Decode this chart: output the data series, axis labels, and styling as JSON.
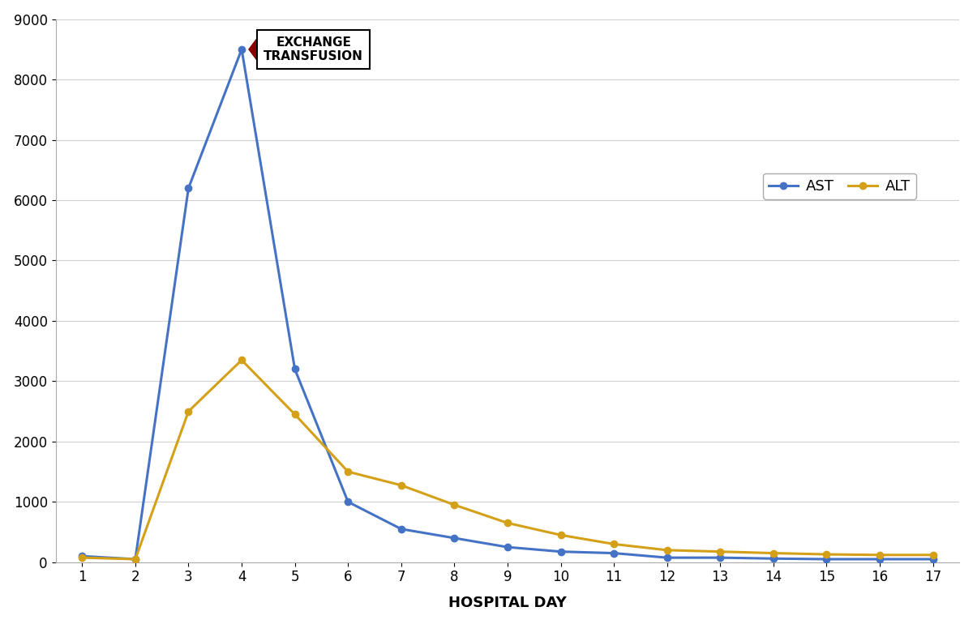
{
  "hospital_days": [
    1,
    2,
    3,
    4,
    5,
    6,
    7,
    8,
    9,
    10,
    11,
    12,
    13,
    14,
    15,
    16,
    17
  ],
  "AST": [
    100,
    50,
    6200,
    8500,
    3200,
    1000,
    550,
    400,
    250,
    175,
    150,
    75,
    75,
    60,
    50,
    50,
    50
  ],
  "ALT": [
    75,
    50,
    2500,
    3350,
    2450,
    1500,
    1275,
    950,
    650,
    450,
    300,
    200,
    175,
    150,
    130,
    120,
    120
  ],
  "AST_color": "#4472C4",
  "ALT_color": "#D4A017",
  "xlabel": "HOSPITAL DAY",
  "ylim": [
    0,
    9000
  ],
  "yticks": [
    0,
    1000,
    2000,
    3000,
    4000,
    5000,
    6000,
    7000,
    8000,
    9000
  ],
  "background_color": "#FFFFFF",
  "plot_bg_color": "#FFFFFF",
  "grid_color": "#D0D0D0",
  "annotation_text": "EXCHANGE\nTRANSFUSION",
  "arrow_color": "#8B0000",
  "legend_AST": "AST",
  "legend_ALT": "ALT"
}
